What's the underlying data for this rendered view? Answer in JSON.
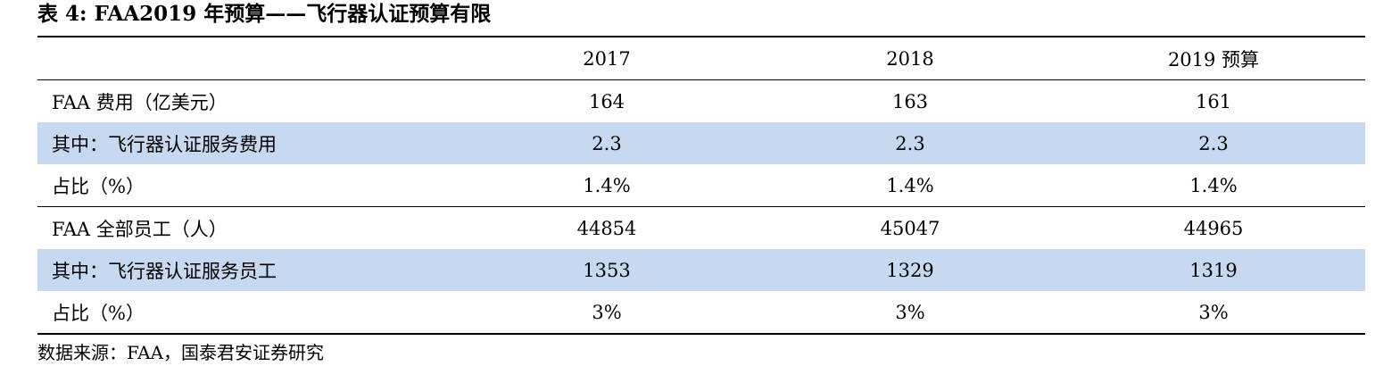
{
  "header": {
    "title": "表 4: FAA2019 年预算——飞行器认证预算有限"
  },
  "table": {
    "columns": [
      "",
      "2017",
      "2018",
      "2019 预算"
    ],
    "rows": [
      [
        "FAA 费用（亿美元）",
        "164",
        "163",
        "161"
      ],
      [
        "其中：飞行器认证服务费用",
        "2.3",
        "2.3",
        "2.3"
      ],
      [
        "占比（%）",
        "1.4%",
        "1.4%",
        "1.4%"
      ],
      [
        "FAA 全部员工（人）",
        "44854",
        "45047",
        "44965"
      ],
      [
        "其中：飞行器认证服务员工",
        "1353",
        "1329",
        "1319"
      ],
      [
        "占比（%）",
        "3%",
        "3%",
        "3%"
      ]
    ]
  },
  "footer": {
    "source": "数据来源：FAA，国泰君安证券研究"
  }
}
